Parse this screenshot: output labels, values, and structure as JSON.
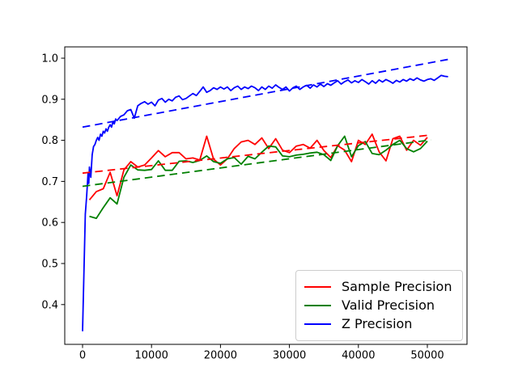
{
  "figure": {
    "background": "#ffffff",
    "title": ""
  },
  "chart_data": {
    "type": "line",
    "title": "",
    "xlabel": "",
    "ylabel": "",
    "grid": false,
    "xlim": [
      -2600,
      55800
    ],
    "ylim": [
      0.303,
      1.028
    ],
    "x_ticks": [
      0,
      10000,
      20000,
      30000,
      40000,
      50000
    ],
    "x_tick_labels": [
      "0",
      "10000",
      "20000",
      "30000",
      "40000",
      "50000"
    ],
    "y_ticks": [
      0.4,
      0.5,
      0.6,
      0.7,
      0.8,
      0.9,
      1.0
    ],
    "y_tick_labels": [
      "0.4",
      "0.5",
      "0.6",
      "0.7",
      "0.8",
      "0.9",
      "1.0"
    ],
    "legend": {
      "position": "lower right",
      "entries": [
        "Sample Precision",
        "Valid Precision",
        "Z Precision"
      ]
    },
    "series": [
      {
        "name": "Sample Precision",
        "color": "#ff0000",
        "style": "solid",
        "x": [
          1000,
          2000,
          3000,
          4000,
          5000,
          6000,
          7000,
          8000,
          9000,
          10000,
          11000,
          12000,
          13000,
          14000,
          15000,
          16000,
          17000,
          18000,
          19000,
          20000,
          21000,
          22000,
          23000,
          24000,
          25000,
          26000,
          27000,
          28000,
          29000,
          30000,
          31000,
          32000,
          33000,
          34000,
          35000,
          36000,
          37000,
          38000,
          39000,
          40000,
          41000,
          42000,
          43000,
          44000,
          45000,
          46000,
          47000,
          48000,
          49000,
          50000
        ],
        "y": [
          0.655,
          0.675,
          0.682,
          0.722,
          0.665,
          0.728,
          0.748,
          0.735,
          0.74,
          0.757,
          0.775,
          0.76,
          0.77,
          0.77,
          0.755,
          0.757,
          0.752,
          0.81,
          0.754,
          0.74,
          0.755,
          0.78,
          0.796,
          0.8,
          0.79,
          0.806,
          0.78,
          0.804,
          0.776,
          0.77,
          0.786,
          0.79,
          0.781,
          0.8,
          0.775,
          0.758,
          0.787,
          0.776,
          0.748,
          0.8,
          0.79,
          0.815,
          0.772,
          0.75,
          0.804,
          0.81,
          0.776,
          0.8,
          0.788,
          0.807
        ]
      },
      {
        "name": "Valid Precision",
        "color": "#008000",
        "style": "solid",
        "x": [
          1000,
          2000,
          3000,
          4000,
          5000,
          6000,
          7000,
          8000,
          9000,
          10000,
          11000,
          12000,
          13000,
          14000,
          15000,
          16000,
          17000,
          18000,
          19000,
          20000,
          21000,
          22000,
          23000,
          24000,
          25000,
          26000,
          27000,
          28000,
          29000,
          30000,
          31000,
          32000,
          33000,
          34000,
          35000,
          36000,
          37000,
          38000,
          39000,
          40000,
          41000,
          42000,
          43000,
          44000,
          45000,
          46000,
          47000,
          48000,
          49000,
          50000
        ],
        "y": [
          0.615,
          0.61,
          0.636,
          0.66,
          0.645,
          0.71,
          0.74,
          0.728,
          0.727,
          0.729,
          0.75,
          0.727,
          0.727,
          0.749,
          0.75,
          0.746,
          0.751,
          0.762,
          0.748,
          0.744,
          0.755,
          0.758,
          0.742,
          0.761,
          0.755,
          0.771,
          0.786,
          0.784,
          0.762,
          0.76,
          0.764,
          0.766,
          0.769,
          0.771,
          0.765,
          0.751,
          0.787,
          0.81,
          0.76,
          0.787,
          0.797,
          0.768,
          0.765,
          0.776,
          0.79,
          0.8,
          0.78,
          0.772,
          0.78,
          0.798
        ]
      },
      {
        "name": "Z Precision",
        "color": "#0000ff",
        "style": "solid",
        "x": [
          0,
          400,
          600,
          800,
          900,
          1000,
          1200,
          1400,
          1600,
          1800,
          2000,
          2200,
          2400,
          2600,
          2800,
          3000,
          3200,
          3400,
          3600,
          3800,
          4000,
          4200,
          4400,
          4600,
          4800,
          5000,
          5500,
          6000,
          6500,
          7000,
          7500,
          8000,
          8500,
          9000,
          9500,
          10000,
          10500,
          11000,
          11500,
          12000,
          12500,
          13000,
          13500,
          14000,
          14500,
          15000,
          15500,
          16000,
          16500,
          17000,
          17500,
          18000,
          18500,
          19000,
          19500,
          20000,
          20500,
          21000,
          21500,
          22000,
          22500,
          23000,
          23500,
          24000,
          24500,
          25000,
          25500,
          26000,
          26500,
          27000,
          27500,
          28000,
          28500,
          29000,
          29500,
          30000,
          30500,
          31000,
          31500,
          32000,
          32500,
          33000,
          33500,
          34000,
          34500,
          35000,
          35500,
          36000,
          36500,
          37000,
          37500,
          38000,
          38500,
          39000,
          39500,
          40000,
          40500,
          41000,
          41500,
          42000,
          42500,
          43000,
          43500,
          44000,
          44500,
          45000,
          45500,
          46000,
          46500,
          47000,
          47500,
          48000,
          48500,
          49000,
          49500,
          50000,
          50500,
          51000,
          51500,
          52000,
          52500,
          53000
        ],
        "y": [
          0.335,
          0.62,
          0.665,
          0.72,
          0.695,
          0.735,
          0.71,
          0.765,
          0.785,
          0.79,
          0.8,
          0.807,
          0.8,
          0.815,
          0.81,
          0.822,
          0.818,
          0.828,
          0.822,
          0.832,
          0.838,
          0.832,
          0.845,
          0.84,
          0.852,
          0.848,
          0.858,
          0.862,
          0.872,
          0.875,
          0.854,
          0.884,
          0.89,
          0.894,
          0.888,
          0.893,
          0.884,
          0.898,
          0.902,
          0.893,
          0.9,
          0.896,
          0.905,
          0.908,
          0.899,
          0.902,
          0.908,
          0.914,
          0.909,
          0.919,
          0.93,
          0.917,
          0.921,
          0.928,
          0.924,
          0.93,
          0.925,
          0.93,
          0.921,
          0.928,
          0.932,
          0.924,
          0.93,
          0.926,
          0.932,
          0.928,
          0.921,
          0.93,
          0.924,
          0.932,
          0.927,
          0.935,
          0.929,
          0.924,
          0.93,
          0.92,
          0.928,
          0.932,
          0.924,
          0.93,
          0.934,
          0.927,
          0.935,
          0.93,
          0.937,
          0.931,
          0.938,
          0.934,
          0.94,
          0.945,
          0.937,
          0.943,
          0.947,
          0.94,
          0.945,
          0.941,
          0.948,
          0.943,
          0.937,
          0.945,
          0.939,
          0.947,
          0.942,
          0.948,
          0.944,
          0.939,
          0.946,
          0.942,
          0.948,
          0.944,
          0.95,
          0.946,
          0.952,
          0.947,
          0.944,
          0.948,
          0.95,
          0.946,
          0.952,
          0.958,
          0.956,
          0.955
        ]
      },
      {
        "name": "Sample Precision trend",
        "color": "#ff0000",
        "style": "dashed",
        "x": [
          0,
          50500
        ],
        "y": [
          0.72,
          0.813
        ]
      },
      {
        "name": "Valid Precision trend",
        "color": "#008000",
        "style": "dashed",
        "x": [
          0,
          50500
        ],
        "y": [
          0.688,
          0.801
        ]
      },
      {
        "name": "Z Precision trend",
        "color": "#0000ff",
        "style": "dashed",
        "x": [
          0,
          53000
        ],
        "y": [
          0.832,
          0.997
        ]
      }
    ]
  }
}
